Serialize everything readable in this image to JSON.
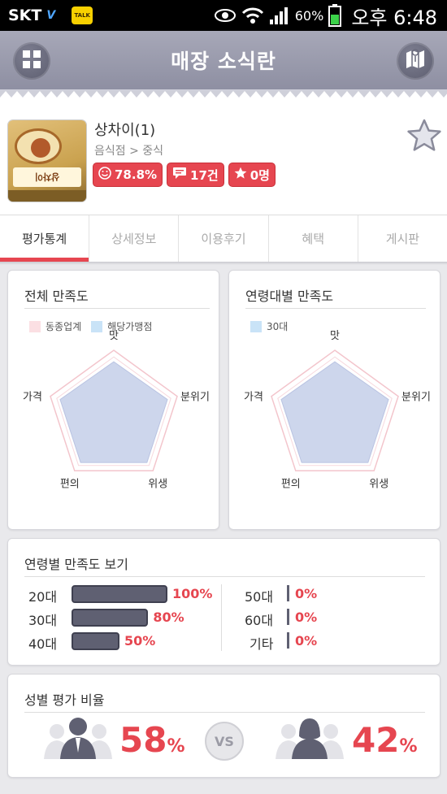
{
  "status_bar": {
    "carrier": "SKT",
    "network_badge": "V",
    "kakao_label": "TALK",
    "battery_pct": "60%",
    "time": "오후 6:48"
  },
  "header": {
    "title": "매장 소식란",
    "left_icon": "grid-menu-icon",
    "right_icon": "map-icon"
  },
  "store": {
    "name": "상차이(1)",
    "category": "음식점 > 중식",
    "satisfaction": "78.8%",
    "reviews": "17건",
    "favorites": "0명",
    "thumb_text": "상차이"
  },
  "tabs": [
    {
      "label": "평가통계",
      "active": true
    },
    {
      "label": "상세정보",
      "active": false
    },
    {
      "label": "이용후기",
      "active": false
    },
    {
      "label": "혜택",
      "active": false
    },
    {
      "label": "게시판",
      "active": false
    }
  ],
  "overall": {
    "title": "전체 만족도",
    "legend": [
      {
        "label": "동종업계",
        "color": "#fbdfe3"
      },
      {
        "label": "해당가맹점",
        "color": "#c9e3f7"
      }
    ],
    "axes": [
      "맛",
      "분위기",
      "위생",
      "편의",
      "가격"
    ],
    "industry_values": [
      1,
      1,
      1,
      1,
      1
    ],
    "store_values": [
      0.92,
      0.94,
      0.94,
      0.94,
      0.94
    ]
  },
  "age_group": {
    "title": "연령대별 만족도",
    "legend": [
      {
        "label": "30대",
        "color": "#c9e3f7"
      }
    ],
    "axes": [
      "맛",
      "분위기",
      "위생",
      "편의",
      "가격"
    ],
    "industry_values": [
      1,
      1,
      1,
      1,
      1
    ],
    "store_values": [
      0.92,
      0.94,
      0.94,
      0.94,
      0.94
    ]
  },
  "age_satisfaction": {
    "title": "연령별 만족도 보기",
    "left": [
      {
        "label": "20대",
        "pct": "100%",
        "value": 100
      },
      {
        "label": "30대",
        "pct": "80%",
        "value": 80
      },
      {
        "label": "40대",
        "pct": "50%",
        "value": 50
      }
    ],
    "right": [
      {
        "label": "50대",
        "pct": "0%",
        "value": 0
      },
      {
        "label": "60대",
        "pct": "0%",
        "value": 0
      },
      {
        "label": "기타",
        "pct": "0%",
        "value": 0
      }
    ]
  },
  "gender": {
    "title": "성별 평가 비율",
    "male_pct": "58",
    "female_pct": "42",
    "unit": "%",
    "vs": "VS"
  }
}
